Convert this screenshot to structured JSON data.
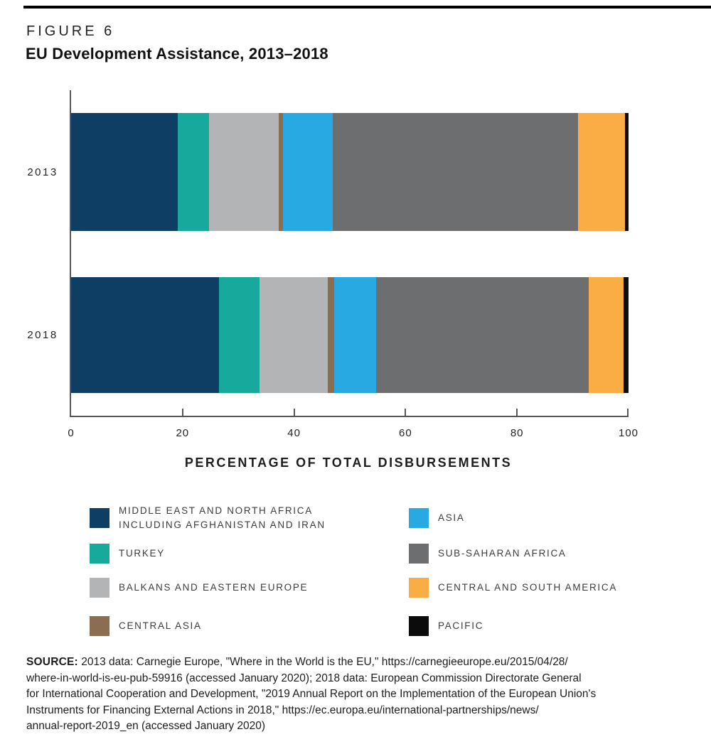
{
  "figure": {
    "label": "FIGURE 6",
    "title": "EU Development Assistance, 2013–2018"
  },
  "chart_data": {
    "type": "bar",
    "orientation": "horizontal",
    "stacked": true,
    "categories": [
      "2013",
      "2018"
    ],
    "series": [
      {
        "name": "MIDDLE EAST AND NORTH AFRICA INCLUDING AFGHANISTAN AND IRAN",
        "color": "#0e3e63",
        "values": [
          19.1,
          26.5
        ]
      },
      {
        "name": "TURKEY",
        "color": "#17a99c",
        "values": [
          5.6,
          7.3
        ]
      },
      {
        "name": "BALKANS AND EASTERN EUROPE",
        "color": "#b2b4b6",
        "values": [
          12.5,
          12.2
        ]
      },
      {
        "name": "CENTRAL ASIA",
        "color": "#8b6e52",
        "values": [
          0.8,
          1.2
        ]
      },
      {
        "name": "ASIA",
        "color": "#29a9e1",
        "values": [
          8.9,
          7.5
        ]
      },
      {
        "name": "SUB-SAHARAN AFRICA",
        "color": "#6c6e70",
        "values": [
          44.0,
          38.1
        ]
      },
      {
        "name": "CENTRAL AND SOUTH AMERICA",
        "color": "#fbad45",
        "values": [
          8.5,
          6.3
        ]
      },
      {
        "name": "PACIFIC",
        "color": "#0c0c0c",
        "values": [
          0.6,
          0.9
        ]
      }
    ],
    "xlabel": "PERCENTAGE OF TOTAL DISBURSEMENTS",
    "xlim": [
      0,
      100
    ],
    "xticks": [
      0,
      20,
      40,
      60,
      80,
      100
    ],
    "grid": false,
    "legend_position": "bottom"
  },
  "axis": {
    "title": "PERCENTAGE OF TOTAL DISBURSEMENTS"
  },
  "legend": {
    "columns": [
      [
        {
          "label_lines": [
            "MIDDLE EAST AND NORTH AFRICA",
            "INCLUDING AFGHANISTAN AND IRAN"
          ],
          "color": "#0e3e63"
        },
        {
          "label_lines": [
            "TURKEY"
          ],
          "color": "#17a99c"
        },
        {
          "label_lines": [
            "BALKANS AND EASTERN EUROPE"
          ],
          "color": "#b2b4b6"
        },
        {
          "label_lines": [
            "CENTRAL ASIA"
          ],
          "color": "#8b6e52"
        }
      ],
      [
        {
          "label_lines": [
            "ASIA"
          ],
          "color": "#29a9e1"
        },
        {
          "label_lines": [
            "SUB-SAHARAN AFRICA"
          ],
          "color": "#6c6e70"
        },
        {
          "label_lines": [
            "CENTRAL AND SOUTH AMERICA"
          ],
          "color": "#fbad45"
        },
        {
          "label_lines": [
            "PACIFIC"
          ],
          "color": "#0c0c0c"
        }
      ]
    ]
  },
  "source": {
    "label": "SOURCE:",
    "lines": [
      "2013 data: Carnegie Europe, \"Where in the World is the EU,\" https://carnegieeurope.eu/2015/04/28/",
      "where-in-world-is-eu-pub-59916 (accessed January 2020); 2018 data: European Commission Directorate General",
      "for International Cooperation and Development, \"2019 Annual Report on the Implementation of the European Union's",
      "Instruments for Financing External Actions in 2018,\" https://ec.europa.eu/international-partnerships/news/",
      "annual-report-2019_en (accessed January 2020)"
    ]
  }
}
